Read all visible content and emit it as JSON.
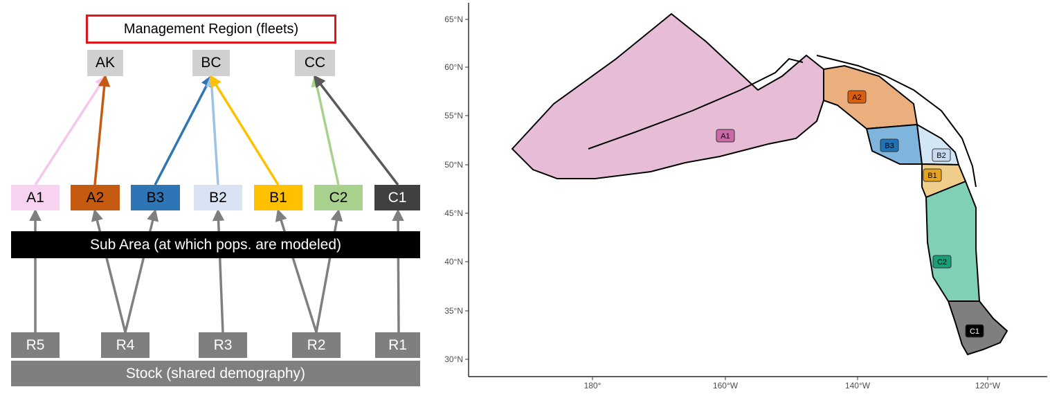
{
  "diagram": {
    "management_title": "Management Region (fleets)",
    "regions": [
      {
        "id": "AK",
        "label": "AK"
      },
      {
        "id": "BC",
        "label": "BC"
      },
      {
        "id": "CC",
        "label": "CC"
      }
    ],
    "subareas": [
      {
        "id": "A1",
        "label": "A1",
        "fill": "#f7d3f0",
        "text": "#000000",
        "region": "AK",
        "arrow": "#f7c6ee"
      },
      {
        "id": "A2",
        "label": "A2",
        "fill": "#c55a11",
        "text": "#000000",
        "region": "AK",
        "arrow": "#c55a11"
      },
      {
        "id": "B3",
        "label": "B3",
        "fill": "#2e75b6",
        "text": "#000000",
        "region": "BC",
        "arrow": "#2e75b6"
      },
      {
        "id": "B2",
        "label": "B2",
        "fill": "#dae3f3",
        "text": "#000000",
        "region": "BC",
        "arrow": "#9dc3e6"
      },
      {
        "id": "B1",
        "label": "B1",
        "fill": "#ffc000",
        "text": "#000000",
        "region": "BC",
        "arrow": "#ffc000"
      },
      {
        "id": "C2",
        "label": "C2",
        "fill": "#a9d18e",
        "text": "#000000",
        "region": "CC",
        "arrow": "#a9d18e"
      },
      {
        "id": "C1",
        "label": "C1",
        "fill": "#404040",
        "text": "#ffffff",
        "region": "CC",
        "arrow": "#595959"
      }
    ],
    "subarea_bar": "Sub Area (at which pops. are modeled)",
    "stocks": [
      {
        "id": "R5",
        "label": "R5",
        "subareas": [
          "A1"
        ]
      },
      {
        "id": "R4",
        "label": "R4",
        "subareas": [
          "A2",
          "B3"
        ]
      },
      {
        "id": "R3",
        "label": "R3",
        "subareas": [
          "B2"
        ]
      },
      {
        "id": "R2",
        "label": "R2",
        "subareas": [
          "B1",
          "C2"
        ]
      },
      {
        "id": "R1",
        "label": "R1",
        "subareas": [
          "C1"
        ]
      }
    ],
    "stock_bar": "Stock (shared demography)",
    "colors": {
      "stock_arrow": "#7f7f7f",
      "bar_black": "#000000",
      "bar_gray": "#7f7f7f",
      "title_border": "#e0141b"
    }
  },
  "map": {
    "y_ticks": [
      "65°N",
      "60°N",
      "55°N",
      "50°N",
      "45°N",
      "40°N",
      "35°N",
      "30°N"
    ],
    "x_ticks": [
      "180°",
      "160°W",
      "140°W",
      "120°W"
    ],
    "areas": [
      {
        "label": "A1",
        "fill": "#e6bcd6",
        "label_fill": "#c86aa6"
      },
      {
        "label": "A2",
        "fill": "#eaaf7c",
        "label_fill": "#d95f0e"
      },
      {
        "label": "B3",
        "fill": "#7fb5dc",
        "label_fill": "#2171b5"
      },
      {
        "label": "B2",
        "fill": "#d3e6f5",
        "label_fill": "#c6dbef"
      },
      {
        "label": "B1",
        "fill": "#f1cd8a",
        "label_fill": "#e6a320"
      },
      {
        "label": "C2",
        "fill": "#7fd0b4",
        "label_fill": "#1b9e77"
      },
      {
        "label": "C1",
        "fill": "#7f7f7f",
        "label_fill": "#000000"
      }
    ]
  }
}
